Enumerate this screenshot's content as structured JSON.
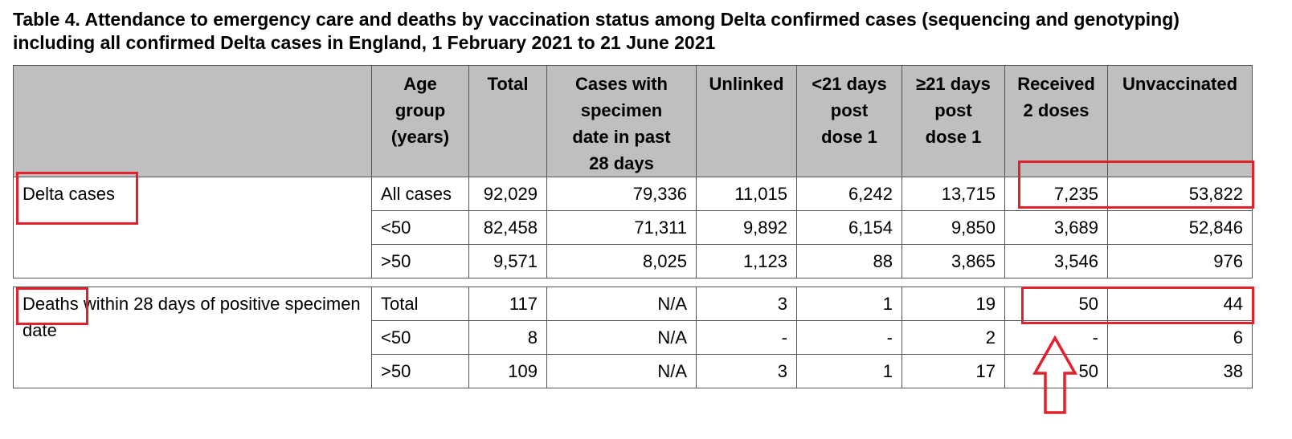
{
  "title": "Table 4. Attendance to emergency care and deaths by vaccination status among Delta confirmed cases (sequencing and genotyping) including all confirmed Delta cases in England, 1 February 2021 to 21 June 2021",
  "headers": {
    "age_group": [
      "Age",
      "group",
      "(years)"
    ],
    "total": "Total",
    "cases_past28": [
      "Cases with",
      "specimen",
      "date in past",
      "28 days"
    ],
    "unlinked": "Unlinked",
    "lt21": [
      "<21 days",
      "post",
      "dose 1"
    ],
    "ge21": [
      "≥21 days",
      "post",
      "dose 1"
    ],
    "received2": [
      "Received",
      "2 doses"
    ],
    "unvaccinated": "Unvaccinated"
  },
  "sections": [
    {
      "label": "Delta cases",
      "rows": [
        [
          "All cases",
          "92,029",
          "79,336",
          "11,015",
          "6,242",
          "13,715",
          "7,235",
          "53,822"
        ],
        [
          "<50",
          "82,458",
          "71,311",
          "9,892",
          "6,154",
          "9,850",
          "3,689",
          "52,846"
        ],
        [
          ">50",
          "9,571",
          "8,025",
          "1,123",
          "88",
          "3,865",
          "3,546",
          "976"
        ]
      ]
    },
    {
      "label": "Deaths within 28 days of positive specimen date",
      "rows": [
        [
          "Total",
          "117",
          "N/A",
          "3",
          "1",
          "19",
          "50",
          "44"
        ],
        [
          "<50",
          "8",
          "N/A",
          "-",
          "-",
          "2",
          "-",
          "6"
        ],
        [
          ">50",
          "109",
          "N/A",
          "3",
          "1",
          "17",
          "50",
          "38"
        ]
      ]
    }
  ],
  "annotation_color": "#e3212d"
}
